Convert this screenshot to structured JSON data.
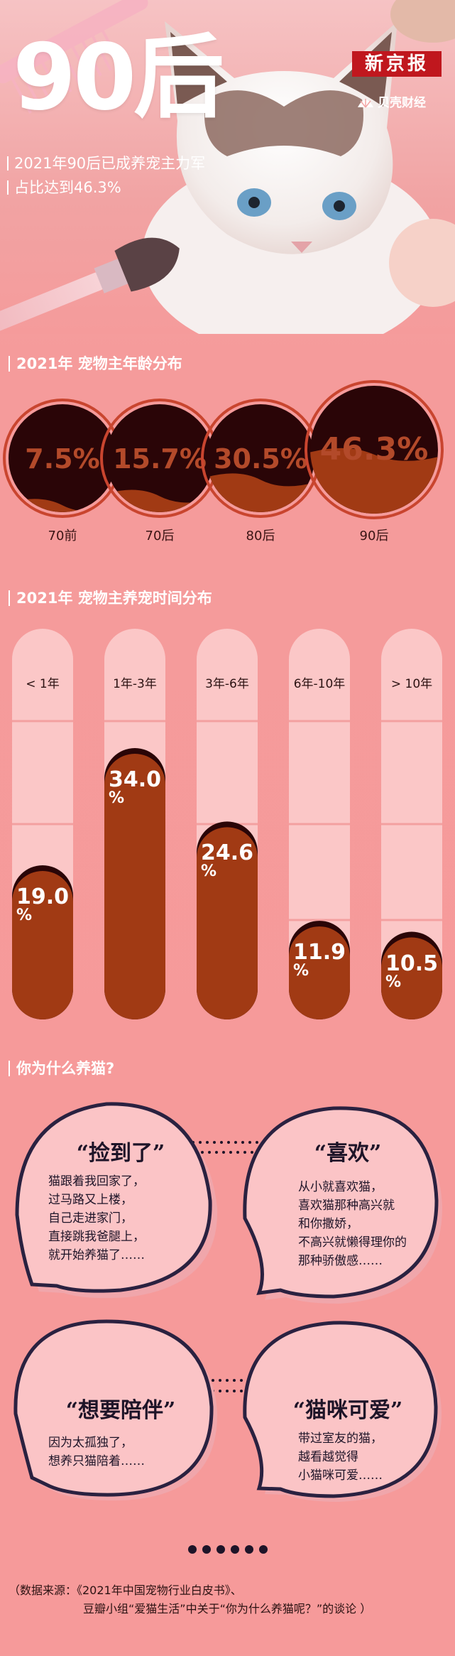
{
  "hero": {
    "title": "90后",
    "brand": "新京报",
    "sub_brand": "贝壳财经",
    "line1": "2021年90后已成养宠主力军",
    "line2": "占比达到46.3%"
  },
  "age_section": {
    "title": "2021年 宠物主年龄分布",
    "items": [
      {
        "label": "70前",
        "value": 7.5,
        "text": "7.5%"
      },
      {
        "label": "70后",
        "value": 15.7,
        "text": "15.7%"
      },
      {
        "label": "80后",
        "value": 30.5,
        "text": "30.5%"
      },
      {
        "label": "90后",
        "value": 46.3,
        "text": "46.3%"
      }
    ]
  },
  "time_section": {
    "title": "2021年 宠物主养宠时间分布",
    "bars": [
      {
        "label": "< 1年",
        "value": 19.0,
        "num": "19.0",
        "pct": "%"
      },
      {
        "label": "1年-3年",
        "value": 34.0,
        "num": "34.0",
        "pct": "%"
      },
      {
        "label": "3年-6年",
        "value": 24.6,
        "num": "24.6",
        "pct": "%"
      },
      {
        "label": "6年-10年",
        "value": 11.9,
        "num": "11.9",
        "pct": "%"
      },
      {
        "label": "> 10年",
        "value": 10.5,
        "num": "10.5",
        "pct": "%"
      }
    ]
  },
  "reason_section": {
    "title": "你为什么养猫?",
    "bubbles": [
      {
        "title": "“捡到了”",
        "body": "猫跟着我回家了，\n过马路又上楼，\n自己走进家门，\n直接跳我爸腿上，\n就开始养猫了……"
      },
      {
        "title": "“喜欢”",
        "body": "从小就喜欢猫，\n喜欢猫那种高兴就\n和你撒娇，\n不高兴就懒得理你的\n那种骄傲感……"
      },
      {
        "title": "“想要陪伴”",
        "body": "因为太孤独了，\n想养只猫陪着……"
      },
      {
        "title": "“猫咪可爱”",
        "body": "带过室友的猫，\n越看越觉得\n小猫咪可爱……"
      }
    ]
  },
  "source": {
    "line1": "（数据来源：《2021年中国宠物行业白皮书》、",
    "line2": "豆瓣小组“爱猫生活”中关于“你为什么养猫呢？”的谈论 ）"
  },
  "colors": {
    "dark": "#2a0507",
    "fill": "#a13a14",
    "ring": "#c9452f",
    "light_pink": "#fbc9c9",
    "bg": "#f59a9a"
  }
}
